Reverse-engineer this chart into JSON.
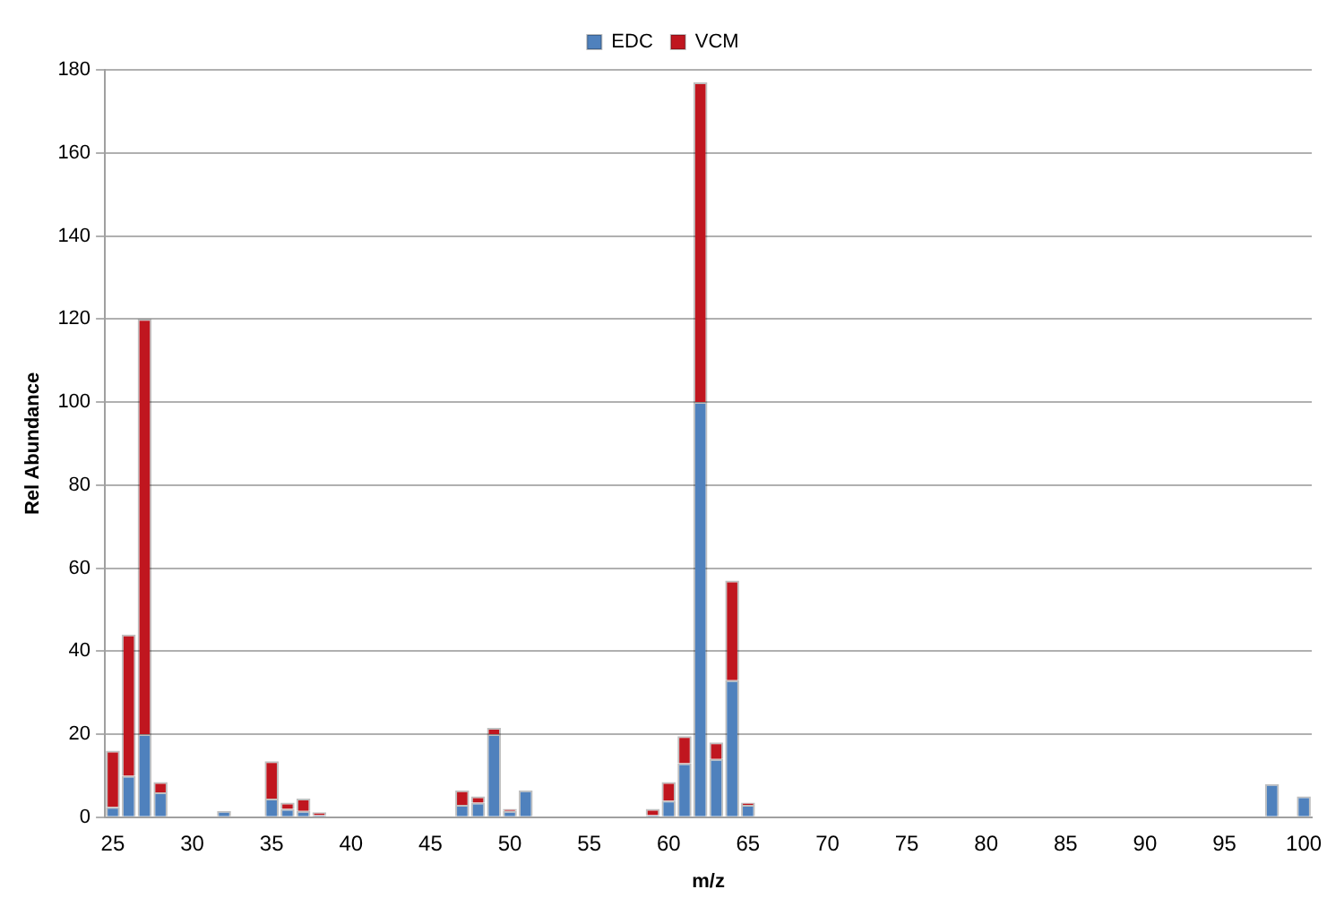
{
  "chart_data": {
    "type": "bar",
    "stacked": true,
    "xlabel": "m/z",
    "ylabel": "Rel Abundance",
    "categories": [
      "25",
      null,
      null,
      null,
      null,
      "30",
      null,
      null,
      null,
      null,
      "35",
      null,
      null,
      null,
      null,
      "40",
      null,
      null,
      null,
      null,
      "45",
      null,
      null,
      null,
      null,
      "50",
      null,
      null,
      null,
      null,
      "55",
      null,
      null,
      null,
      null,
      "60",
      null,
      null,
      null,
      null,
      "65",
      null,
      null,
      null,
      null,
      "70",
      null,
      null,
      null,
      null,
      "75",
      null,
      null,
      null,
      null,
      "80",
      null,
      null,
      null,
      null,
      "85",
      null,
      null,
      null,
      null,
      "90",
      null,
      null,
      null,
      null,
      "95",
      null,
      null,
      null,
      null,
      "100"
    ],
    "series": [
      {
        "name": "EDC",
        "color": "#4f81bd",
        "values": [
          2.5,
          10,
          20,
          6,
          0,
          0,
          0,
          1.5,
          0,
          0,
          4.5,
          2,
          1.5,
          0.5,
          0,
          0,
          0,
          0,
          0,
          0,
          0,
          0,
          3,
          3.5,
          20,
          1.5,
          6.5,
          0,
          0,
          0,
          0,
          0,
          0,
          0,
          0.5,
          4,
          13,
          100,
          14,
          33,
          3,
          0,
          0,
          0,
          0,
          0,
          0,
          0,
          0,
          0,
          0,
          0,
          0,
          0,
          0,
          0,
          0,
          0,
          0,
          0,
          0,
          0,
          0,
          0,
          0,
          0,
          0,
          0,
          0,
          0,
          0,
          0,
          0,
          8,
          0,
          5
        ]
      },
      {
        "name": "VCM",
        "color": "#c0161f",
        "values": [
          13.5,
          34,
          100,
          2.5,
          0,
          0,
          0,
          0,
          0,
          0,
          9,
          1.5,
          3,
          0.7,
          0,
          0,
          0,
          0,
          0,
          0,
          0,
          0,
          3.5,
          1.5,
          1.5,
          0.5,
          0,
          0,
          0,
          0,
          0,
          0,
          0,
          0,
          1.5,
          4.5,
          6.5,
          77,
          4,
          24,
          0.5,
          0,
          0,
          0,
          0,
          0,
          0,
          0,
          0,
          0,
          0,
          0,
          0,
          0,
          0,
          0,
          0,
          0,
          0,
          0,
          0,
          0,
          0,
          0,
          0,
          0,
          0,
          0,
          0,
          0,
          0,
          0,
          0,
          0,
          0,
          0
        ]
      }
    ],
    "ylim": [
      0,
      180
    ],
    "yticks": [
      0,
      20,
      40,
      60,
      80,
      100,
      120,
      140,
      160,
      180
    ],
    "grid": "y",
    "legend": "top"
  }
}
